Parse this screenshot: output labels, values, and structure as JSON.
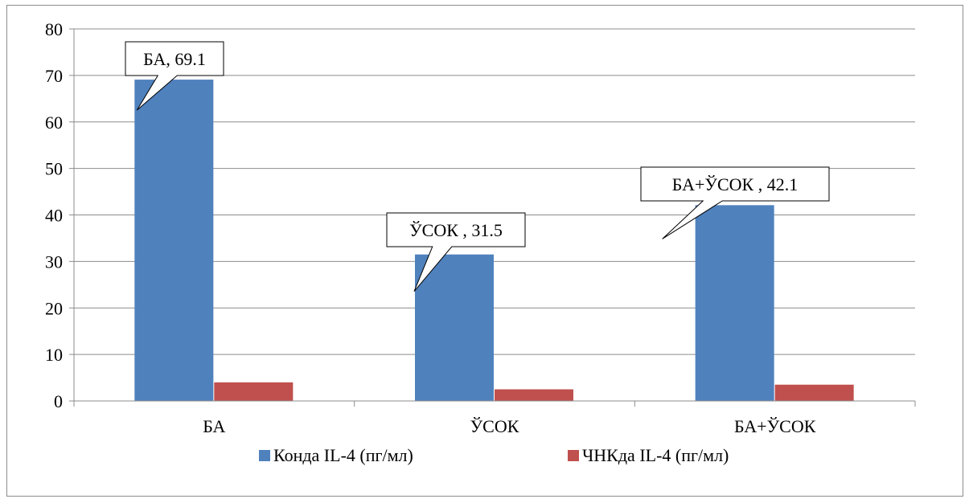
{
  "chart_data": {
    "type": "bar",
    "categories": [
      "БА",
      "ЎСОК",
      "БА+ЎСОК"
    ],
    "series": [
      {
        "name": "Конда IL-4 (пг/мл)",
        "values": [
          69.1,
          31.5,
          42.1
        ],
        "color": "#4f81bd"
      },
      {
        "name": "ЧНКда IL-4 (пг/мл)",
        "values": [
          4.0,
          2.5,
          3.5
        ],
        "color": "#c0504d"
      }
    ],
    "ylim": [
      0,
      80
    ],
    "yticks": [
      0,
      10,
      20,
      30,
      40,
      50,
      60,
      70,
      80
    ],
    "grid": true,
    "legend_position": "bottom",
    "annotations": [
      {
        "text": "БА, 69.1",
        "category": "БА",
        "series": 0
      },
      {
        "text": "ЎСОК , 31.5",
        "category": "ЎСОК",
        "series": 0
      },
      {
        "text": "БА+ЎСОК , 42.1",
        "category": "БА+ЎСОК",
        "series": 0
      }
    ]
  }
}
